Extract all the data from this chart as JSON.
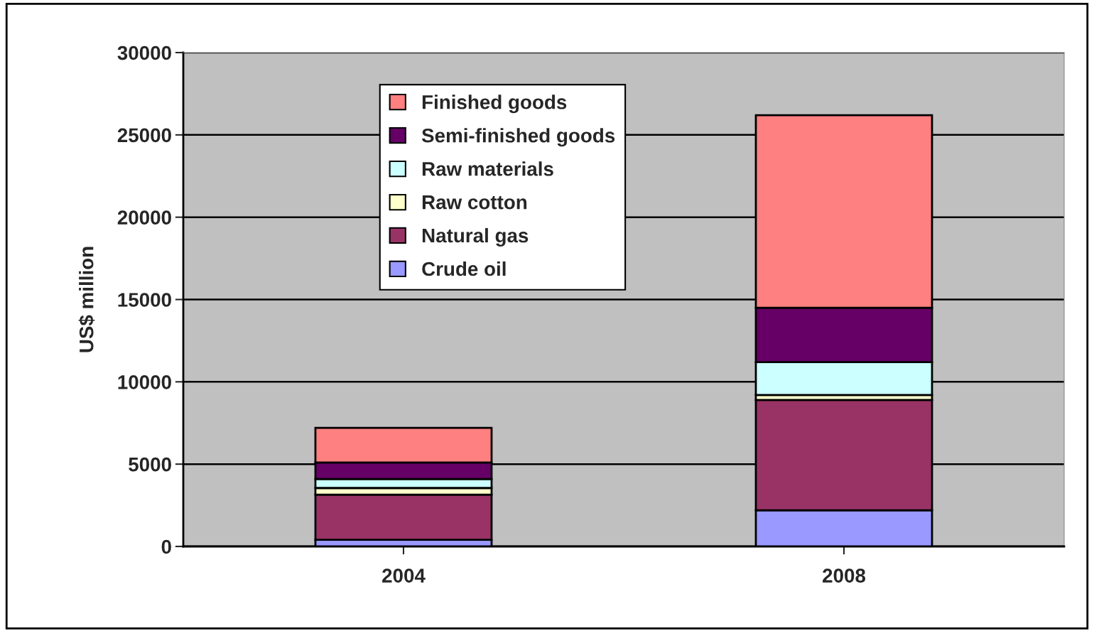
{
  "chart_data": {
    "type": "bar",
    "stacked": true,
    "ylabel": "US$ million",
    "categories": [
      "2004",
      "2008"
    ],
    "series": [
      {
        "name": "Crude oil",
        "color": "#9999ff",
        "values": [
          400,
          2200
        ]
      },
      {
        "name": "Natural gas",
        "color": "#993366",
        "values": [
          2750,
          6700
        ]
      },
      {
        "name": "Raw cotton",
        "color": "#ffffcc",
        "values": [
          400,
          300
        ]
      },
      {
        "name": "Raw materials",
        "color": "#ccffff",
        "values": [
          550,
          2000
        ]
      },
      {
        "name": "Semi-finished goods",
        "color": "#660066",
        "values": [
          1000,
          3300
        ]
      },
      {
        "name": "Finished goods",
        "color": "#ff8080",
        "values": [
          2100,
          11700
        ]
      }
    ],
    "ylim": [
      0,
      30000
    ],
    "yticks": [
      0,
      5000,
      10000,
      15000,
      20000,
      25000,
      30000
    ],
    "grid": "y",
    "legend": "top"
  }
}
